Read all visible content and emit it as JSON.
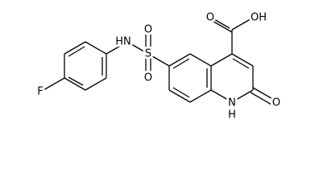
{
  "atoms": {
    "carboxyl_o": "O",
    "carboxyl_oh": "OH",
    "amine": "HN",
    "sulfur": "S",
    "sulfonyl_o_top": "O",
    "sulfonyl_o_bottom": "O",
    "fluorine": "F",
    "ring_n": "N",
    "ring_h": "H",
    "carbonyl_o": "O"
  }
}
